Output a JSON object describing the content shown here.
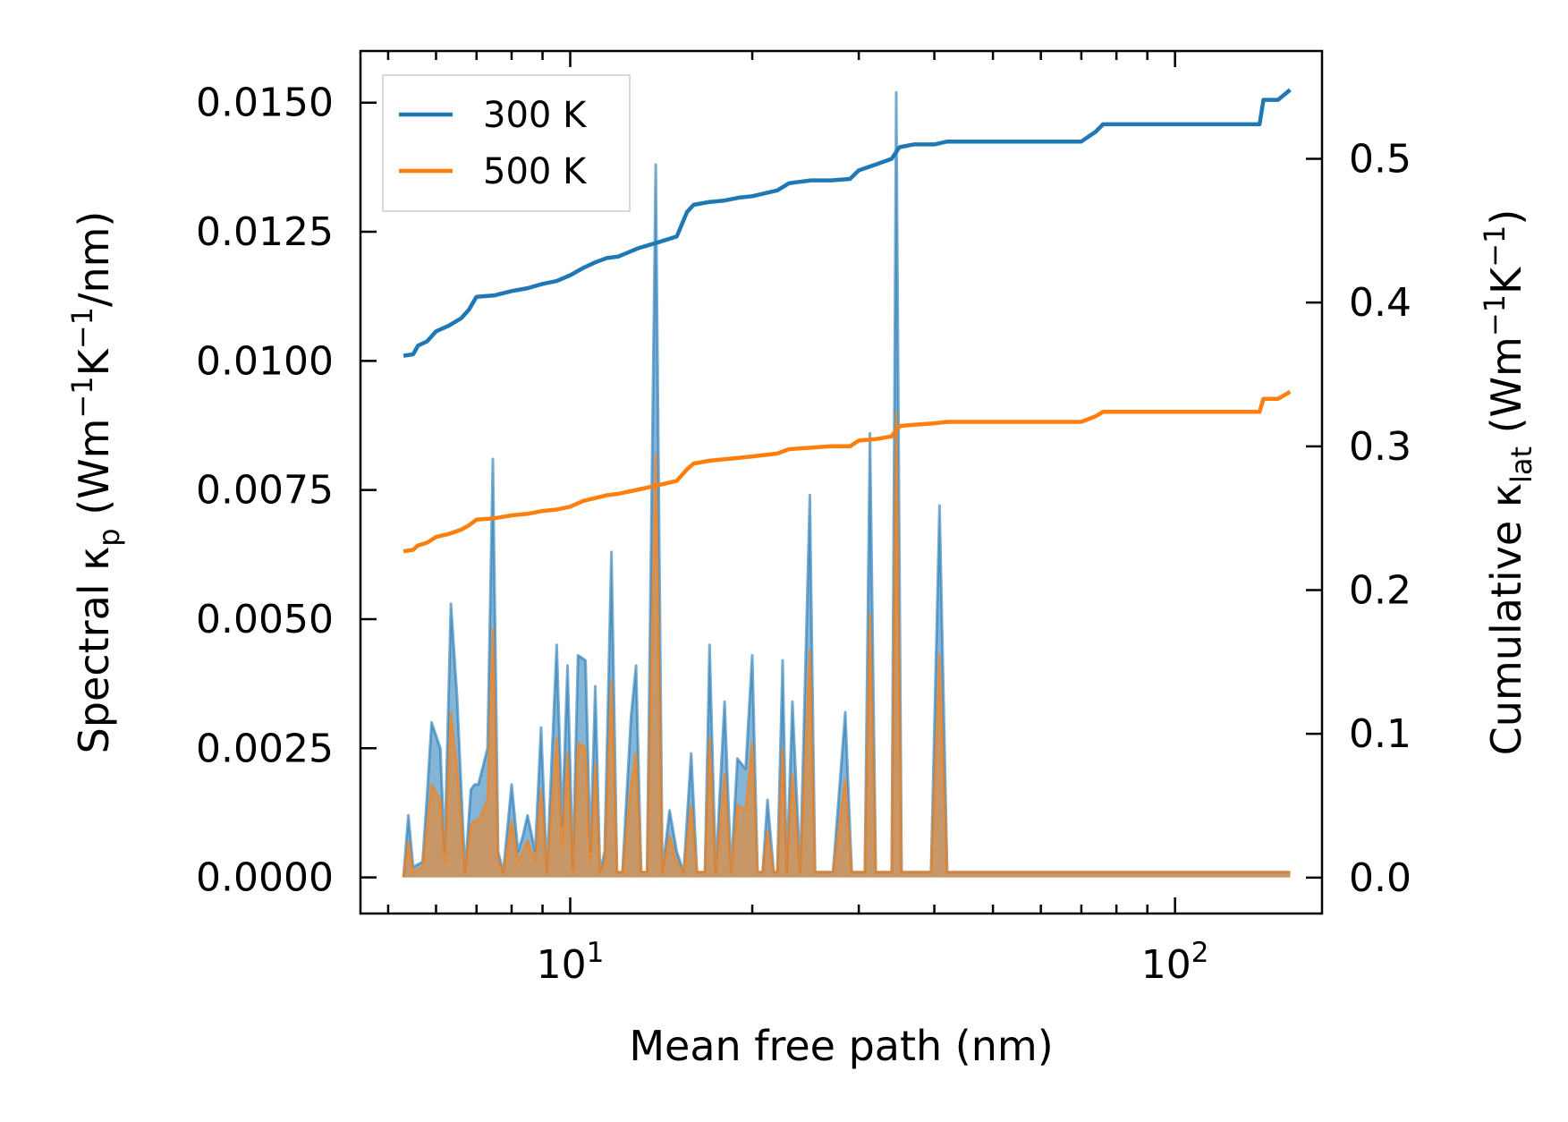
{
  "chart_data": {
    "type": "line",
    "title": "",
    "xlabel": "Mean free path (nm)",
    "ylabel_left_parts": [
      "Spectral κ",
      "p",
      " (Wm",
      "−1",
      "K",
      "−1",
      "/nm)"
    ],
    "ylabel_right_parts": [
      "Cumulative κ",
      "lat",
      " (Wm",
      "−1",
      "K",
      "−1",
      ")"
    ],
    "x_scale": "log",
    "xlim": [
      4.5,
      175
    ],
    "ylim_left": [
      -0.0007,
      0.016
    ],
    "ylim_right": [
      -0.025,
      0.575
    ],
    "x_tick_labels": [
      {
        "value": 10,
        "base": "10",
        "exp": "1"
      },
      {
        "value": 100,
        "base": "10",
        "exp": "2"
      }
    ],
    "y_left_ticks": [
      0.0,
      0.0025,
      0.005,
      0.0075,
      0.01,
      0.0125,
      0.015
    ],
    "y_left_tick_labels": [
      "0.0000",
      "0.0025",
      "0.0050",
      "0.0075",
      "0.0100",
      "0.0125",
      "0.0150"
    ],
    "y_right_ticks": [
      0.0,
      0.1,
      0.2,
      0.3,
      0.4,
      0.5
    ],
    "y_right_tick_labels": [
      "0.0",
      "0.1",
      "0.2",
      "0.3",
      "0.4",
      "0.5"
    ],
    "legend": {
      "position": "upper-left",
      "entries": [
        {
          "label": "300 K",
          "color": "#1f77b4"
        },
        {
          "label": "500 K",
          "color": "#ff7f0e"
        }
      ]
    },
    "series": [
      {
        "name": "300 K cumulative",
        "axis": "right",
        "color": "#1f77b4",
        "x": [
          5.3,
          5.5,
          5.6,
          5.8,
          6.0,
          6.3,
          6.6,
          6.8,
          7.0,
          7.5,
          8.0,
          8.5,
          9.0,
          9.5,
          10.0,
          10.5,
          11.0,
          11.5,
          12.0,
          13.0,
          14.0,
          15.0,
          15.6,
          16.0,
          17.0,
          18.0,
          19.0,
          20.0,
          22.0,
          23.0,
          25.0,
          27.0,
          29.0,
          30.0,
          32.0,
          34.0,
          35.0,
          37.0,
          40.0,
          42.0,
          45.0,
          50.0,
          60.0,
          70.0,
          74.0,
          76.0,
          80.0,
          100.0,
          138.0,
          140.0,
          148.0,
          155.0
        ],
        "values": [
          0.363,
          0.364,
          0.37,
          0.373,
          0.38,
          0.384,
          0.389,
          0.395,
          0.404,
          0.405,
          0.408,
          0.41,
          0.413,
          0.415,
          0.419,
          0.424,
          0.428,
          0.431,
          0.432,
          0.438,
          0.442,
          0.446,
          0.463,
          0.468,
          0.47,
          0.471,
          0.473,
          0.474,
          0.478,
          0.483,
          0.485,
          0.485,
          0.486,
          0.492,
          0.496,
          0.5,
          0.508,
          0.51,
          0.51,
          0.512,
          0.512,
          0.512,
          0.512,
          0.512,
          0.519,
          0.524,
          0.524,
          0.524,
          0.524,
          0.541,
          0.541,
          0.548
        ]
      },
      {
        "name": "500 K cumulative",
        "axis": "right",
        "color": "#ff7f0e",
        "x": [
          5.3,
          5.5,
          5.6,
          5.8,
          6.0,
          6.3,
          6.6,
          6.8,
          7.0,
          7.5,
          8.0,
          8.5,
          9.0,
          9.5,
          10.0,
          10.5,
          11.0,
          11.5,
          12.0,
          13.0,
          14.0,
          15.0,
          15.6,
          16.0,
          17.0,
          18.0,
          19.0,
          20.0,
          22.0,
          23.0,
          25.0,
          27.0,
          29.0,
          30.0,
          32.0,
          34.0,
          35.0,
          37.0,
          40.0,
          42.0,
          45.0,
          50.0,
          60.0,
          70.0,
          74.0,
          76.0,
          80.0,
          100.0,
          138.0,
          140.0,
          148.0,
          155.0
        ],
        "values": [
          0.227,
          0.228,
          0.231,
          0.233,
          0.237,
          0.239,
          0.242,
          0.245,
          0.249,
          0.25,
          0.252,
          0.253,
          0.255,
          0.256,
          0.258,
          0.262,
          0.264,
          0.266,
          0.267,
          0.27,
          0.273,
          0.276,
          0.284,
          0.288,
          0.29,
          0.291,
          0.292,
          0.293,
          0.295,
          0.298,
          0.299,
          0.3,
          0.3,
          0.304,
          0.305,
          0.307,
          0.314,
          0.315,
          0.316,
          0.317,
          0.317,
          0.317,
          0.317,
          0.317,
          0.321,
          0.324,
          0.324,
          0.324,
          0.324,
          0.333,
          0.333,
          0.338
        ]
      },
      {
        "name": "300 K spectral",
        "axis": "left",
        "color": "#1f77b4",
        "x": [
          5.3,
          5.4,
          5.5,
          5.7,
          5.8,
          5.9,
          6.1,
          6.2,
          6.35,
          6.5,
          6.7,
          6.85,
          6.95,
          7.05,
          7.3,
          7.45,
          7.6,
          7.75,
          8.0,
          8.2,
          8.35,
          8.5,
          8.75,
          8.95,
          9.15,
          9.5,
          9.7,
          9.9,
          10.1,
          10.3,
          10.6,
          10.8,
          11.0,
          11.2,
          11.4,
          11.7,
          11.95,
          12.2,
          12.6,
          12.85,
          13.1,
          13.4,
          13.85,
          14.2,
          14.6,
          15.0,
          15.4,
          15.85,
          16.2,
          16.7,
          17.0,
          17.4,
          18.0,
          18.45,
          18.9,
          19.5,
          20.0,
          20.4,
          20.8,
          21.2,
          21.7,
          22.0,
          22.45,
          22.8,
          23.3,
          24.0,
          24.9,
          25.4,
          26.0,
          27.2,
          28.5,
          29.2,
          30.0,
          30.7,
          31.3,
          32.0,
          33.0,
          34.0,
          34.6,
          35.3,
          36.5,
          39.5,
          40.8,
          42.0,
          45.0,
          72.0,
          74.5,
          77.0,
          137.0,
          140.0,
          143.0,
          149.0,
          151.0,
          153.0,
          155.0
        ],
        "values": [
          0,
          0.0012,
          0.0002,
          0.0003,
          0.0016,
          0.003,
          0.0025,
          0.0005,
          0.0053,
          0.0035,
          0.0001,
          0.0017,
          0.0018,
          0.0018,
          0.0025,
          0.0081,
          0.0005,
          0.0001,
          0.0018,
          0.0005,
          0.0008,
          0.0012,
          0.0005,
          0.0029,
          0.0001,
          0.0045,
          0.001,
          0.0041,
          0.0002,
          0.0043,
          0.0042,
          0.0005,
          0.0037,
          0.0001,
          0.0005,
          0.0063,
          0.0001,
          0.0001,
          0.0031,
          0.0041,
          0.0001,
          0.0001,
          0.0138,
          0.0001,
          0.0013,
          0.0005,
          0.0001,
          0.0024,
          0.0001,
          0.0001,
          0.0045,
          0.0001,
          0.0034,
          0.0001,
          0.0023,
          0.0021,
          0.0043,
          0.0001,
          0.0001,
          0.0015,
          0.0001,
          0.0001,
          0.0042,
          0.0001,
          0.0034,
          0.0001,
          0.0074,
          0.0001,
          0.0001,
          0.0001,
          0.0032,
          0.0001,
          0.0001,
          0.0001,
          0.0086,
          0.0001,
          0.0001,
          0.0001,
          0.0152,
          0.0001,
          0.0001,
          0.0001,
          0.0072,
          0.0001,
          0.0001,
          0.0001,
          0.0001,
          0.0001,
          0.0001,
          0.0001,
          0.0001,
          0.0001,
          0.0001,
          0.0001,
          0.0001
        ]
      },
      {
        "name": "500 K spectral",
        "axis": "left",
        "color": "#ff7f0e",
        "x": [
          5.3,
          5.4,
          5.5,
          5.7,
          5.8,
          5.9,
          6.1,
          6.2,
          6.35,
          6.5,
          6.7,
          6.85,
          6.95,
          7.05,
          7.3,
          7.45,
          7.6,
          7.75,
          8.0,
          8.2,
          8.35,
          8.5,
          8.75,
          8.95,
          9.15,
          9.5,
          9.7,
          9.9,
          10.1,
          10.3,
          10.6,
          10.8,
          11.0,
          11.2,
          11.4,
          11.7,
          11.95,
          12.2,
          12.6,
          12.85,
          13.1,
          13.4,
          13.85,
          14.2,
          14.6,
          15.0,
          15.4,
          15.85,
          16.2,
          16.7,
          17.0,
          17.4,
          18.0,
          18.45,
          18.9,
          19.5,
          20.0,
          20.4,
          20.8,
          21.2,
          21.7,
          22.0,
          22.45,
          22.8,
          23.3,
          24.0,
          24.9,
          25.4,
          26.0,
          27.2,
          28.5,
          29.2,
          30.0,
          30.7,
          31.3,
          32.0,
          33.0,
          34.0,
          34.6,
          35.3,
          36.5,
          39.5,
          40.8,
          42.0,
          45.0,
          72.0,
          74.5,
          77.0,
          137.0,
          140.0,
          143.0,
          149.0,
          151.0,
          153.0,
          155.0
        ],
        "values": [
          0,
          0.0007,
          0.0001,
          0.0002,
          0.001,
          0.0018,
          0.0015,
          0.0003,
          0.0032,
          0.0021,
          0.0001,
          0.001,
          0.0011,
          0.0011,
          0.0015,
          0.0048,
          0.0003,
          0.0001,
          0.0011,
          0.0003,
          0.0005,
          0.0007,
          0.0003,
          0.0017,
          0.0001,
          0.0027,
          0.0006,
          0.0024,
          0.0001,
          0.0026,
          0.0025,
          0.0003,
          0.0022,
          0.0001,
          0.0003,
          0.0038,
          0.0001,
          0.0001,
          0.0018,
          0.0024,
          0.0001,
          0.0001,
          0.0082,
          0.0001,
          0.0008,
          0.0003,
          0.0001,
          0.0014,
          0.0001,
          0.0001,
          0.0027,
          0.0001,
          0.002,
          0.0001,
          0.0014,
          0.0013,
          0.0026,
          0.0001,
          0.0001,
          0.0009,
          0.0001,
          0.0001,
          0.0025,
          0.0001,
          0.002,
          0.0001,
          0.0044,
          0.0001,
          0.0001,
          0.0001,
          0.0019,
          0.0001,
          0.0001,
          0.0001,
          0.0051,
          0.0001,
          0.0001,
          0.0001,
          0.009,
          0.0001,
          0.0001,
          0.0001,
          0.0043,
          0.0001,
          0.0001,
          0.0001,
          0.0001,
          0.0001,
          0.0001,
          0.0001,
          0.0001,
          0.0001,
          0.0001,
          0.0001,
          0.0001
        ]
      }
    ]
  }
}
